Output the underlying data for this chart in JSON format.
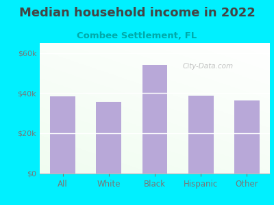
{
  "title": "Median household income in 2022",
  "subtitle": "Combee Settlement, FL",
  "categories": [
    "All",
    "White",
    "Black",
    "Hispanic",
    "Other"
  ],
  "values": [
    38500,
    35500,
    54000,
    38800,
    36500
  ],
  "bar_color": "#b8a8d8",
  "title_fontsize": 13,
  "subtitle_fontsize": 9.5,
  "subtitle_color": "#00aaaa",
  "title_color": "#444444",
  "bg_outer": "#00f0ff",
  "ylim": [
    0,
    65000
  ],
  "yticks": [
    0,
    20000,
    40000,
    60000
  ],
  "ytick_labels": [
    "$0",
    "$20k",
    "$40k",
    "$60k"
  ],
  "tick_color": "#777777",
  "watermark": "City-Data.com"
}
